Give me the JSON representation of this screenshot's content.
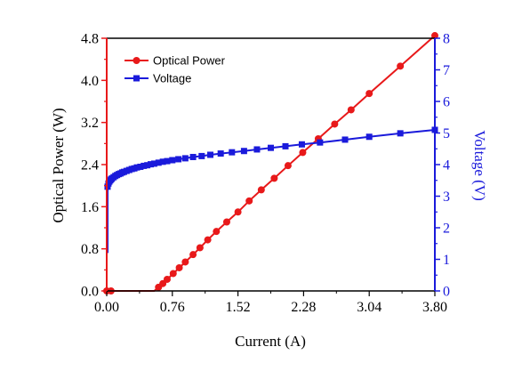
{
  "chart_data": {
    "type": "line",
    "title": "",
    "xlabel": "Current (A)",
    "ylabel_left": "Optical Power (W)",
    "ylabel_right": "Voltage (V)",
    "xlim": [
      0,
      3.8
    ],
    "ylim_left": [
      0,
      4.8
    ],
    "ylim_right": [
      0,
      8
    ],
    "xticks": [
      "0.00",
      "0.76",
      "1.52",
      "2.28",
      "3.04",
      "3.80"
    ],
    "yticks_left": [
      "0.0",
      "0.8",
      "1.6",
      "2.4",
      "3.2",
      "4.0",
      "4.8"
    ],
    "yticks_right": [
      "0",
      "1",
      "2",
      "3",
      "4",
      "5",
      "6",
      "7",
      "8"
    ],
    "legend_position": "top-left",
    "grid": false,
    "colors": {
      "power": "#e8191a",
      "voltage": "#1a1adb",
      "axis_left": "#e8191a",
      "axis_right": "#1a1adb",
      "bottom_axis": "#000000"
    },
    "series": [
      {
        "name": "Optical Power",
        "axis": "left",
        "marker": "circle",
        "color": "#e8191a",
        "x": [
          0.0,
          0.05,
          0.1,
          0.15,
          0.2,
          0.25,
          0.3,
          0.35,
          0.4,
          0.45,
          0.5,
          0.55,
          0.6,
          0.65,
          0.7,
          0.77,
          0.84,
          0.91,
          1.0,
          1.08,
          1.17,
          1.27,
          1.39,
          1.52,
          1.65,
          1.79,
          1.94,
          2.1,
          2.27,
          2.45,
          2.64,
          2.83,
          3.04,
          3.4,
          3.8
        ],
        "y": [
          0.0,
          0.0,
          0.0,
          0.0,
          0.0,
          0.0,
          0.0,
          0.0,
          0.0,
          0.0,
          0.0,
          0.0,
          0.07,
          0.14,
          0.22,
          0.33,
          0.44,
          0.55,
          0.69,
          0.82,
          0.97,
          1.13,
          1.31,
          1.5,
          1.71,
          1.92,
          2.14,
          2.38,
          2.63,
          2.89,
          3.17,
          3.44,
          3.75,
          4.27,
          4.85
        ]
      },
      {
        "name": "Voltage",
        "axis": "right",
        "marker": "square",
        "color": "#1a1adb",
        "x": [
          0.01,
          0.02,
          0.03,
          0.04,
          0.05,
          0.06,
          0.08,
          0.1,
          0.12,
          0.14,
          0.16,
          0.18,
          0.2,
          0.23,
          0.26,
          0.29,
          0.32,
          0.35,
          0.39,
          0.43,
          0.47,
          0.51,
          0.55,
          0.6,
          0.65,
          0.7,
          0.76,
          0.83,
          0.91,
          1.0,
          1.1,
          1.2,
          1.32,
          1.45,
          1.59,
          1.74,
          1.9,
          2.07,
          2.26,
          2.47,
          2.76,
          3.04,
          3.4,
          3.8
        ],
        "y": [
          3.3,
          3.4,
          3.46,
          3.5,
          3.53,
          3.56,
          3.6,
          3.64,
          3.67,
          3.7,
          3.72,
          3.75,
          3.77,
          3.8,
          3.83,
          3.86,
          3.88,
          3.91,
          3.93,
          3.96,
          3.98,
          4.01,
          4.03,
          4.06,
          4.09,
          4.11,
          4.14,
          4.17,
          4.2,
          4.24,
          4.27,
          4.31,
          4.35,
          4.39,
          4.43,
          4.48,
          4.53,
          4.58,
          4.64,
          4.7,
          4.79,
          4.88,
          4.99,
          5.1
        ]
      }
    ]
  }
}
